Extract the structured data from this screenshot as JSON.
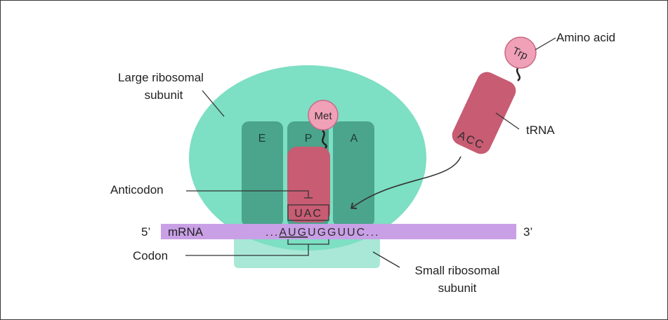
{
  "labels": {
    "large_subunit_line1": "Large ribosomal",
    "large_subunit_line2": "subunit",
    "small_subunit_line1": "Small ribosomal",
    "small_subunit_line2": "subunit",
    "anticodon": "Anticodon",
    "codon": "Codon",
    "amino_acid": "Amino acid",
    "trna": "tRNA",
    "mrna": "mRNA",
    "five_prime": "5’",
    "three_prime": "3’"
  },
  "sites": {
    "e": "E",
    "p": "P",
    "a": "A"
  },
  "p_site_trna": {
    "amino_acid": "Met",
    "anticodon": "UAC"
  },
  "incoming_trna": {
    "amino_acid": "Trp",
    "anticodon": "ACC"
  },
  "mrna_sequence": {
    "leading_dots": "...",
    "codon": "AUG",
    "rest": "UGGUUC",
    "trailing_dots": "..."
  },
  "colors": {
    "large_subunit": "#7ddfc3",
    "site_slot": "#4aa58c",
    "small_subunit": "#a9e8d6",
    "mrna": "#c9a0e6",
    "trna_body": "#c75c73",
    "amino_acid_circle": "#f0a0b7",
    "line": "#333333"
  }
}
